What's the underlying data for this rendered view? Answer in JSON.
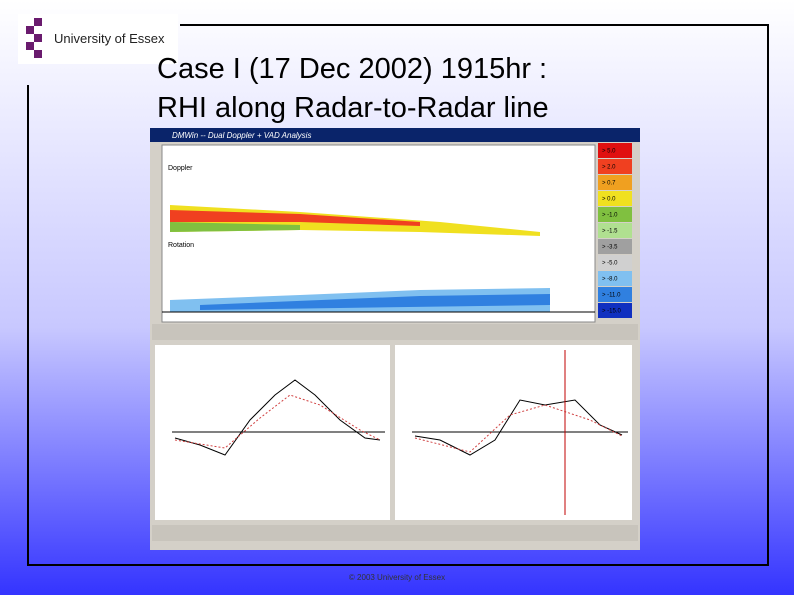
{
  "logo": {
    "text": "University of Essex"
  },
  "title": [
    "Case I (17 Dec 2002) 1915hr :",
    "RHI along Radar-to-Radar line"
  ],
  "window": {
    "title": "DMWin -- Dual Doppler + VAD Analysis",
    "panels": [
      "Doppler",
      "Rotation"
    ],
    "legend": [
      {
        "label": "> 5.0",
        "color": "#e01010"
      },
      {
        "label": "> 2.0",
        "color": "#f04020"
      },
      {
        "label": "> 0.7",
        "color": "#f0a020"
      },
      {
        "label": "> 0.0",
        "color": "#f0e020"
      },
      {
        "label": "> -1.0",
        "color": "#80c040"
      },
      {
        "label": "> -1.5",
        "color": "#b0e090"
      },
      {
        "label": "> -3.5",
        "color": "#a0a0a0"
      },
      {
        "label": "> -5.0",
        "color": "#d0d0d0"
      },
      {
        "label": "> -8.0",
        "color": "#80c0f0"
      },
      {
        "label": "> -11.0",
        "color": "#3080e0"
      },
      {
        "label": "> -15.0",
        "color": "#1030c0"
      }
    ]
  },
  "footer": "© 2003 University of Essex"
}
